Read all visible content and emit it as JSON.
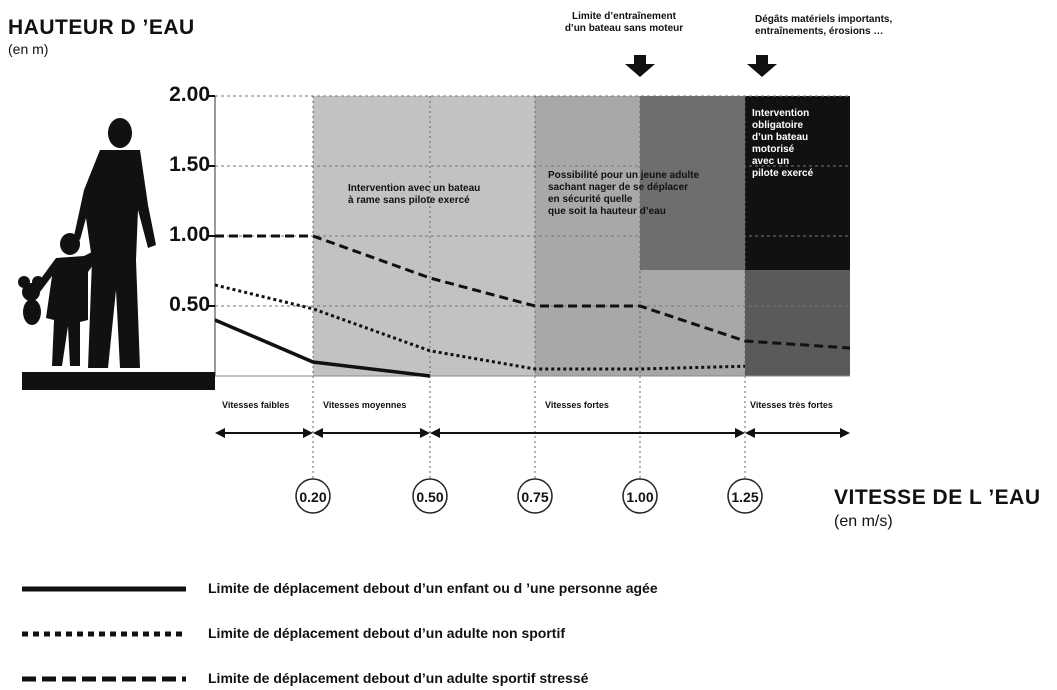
{
  "y_axis": {
    "title": "HAUTEUR D ’EAU",
    "unit": "(en m)",
    "ticks": [
      "2.00",
      "1.50",
      "1.00",
      "0.50"
    ]
  },
  "x_axis": {
    "title": "VITESSE DE L ’EAU",
    "unit": "(en m/s)",
    "ticks": [
      "0.20",
      "0.50",
      "0.75",
      "1.00",
      "1.25"
    ]
  },
  "notes": {
    "boat_limit": [
      "Limite d’entraînement",
      "d’un bateau sans moteur"
    ],
    "damage": [
      "Dégâts matériels importants,",
      "entraînements, érosions …"
    ]
  },
  "zones": {
    "rowing": [
      "Intervention avec un bateau",
      "à rame sans pilote exercé"
    ],
    "young_adult": [
      "Possibilité pour un jeune adulte",
      "sachant nager de se déplacer",
      "en sécurité quelle",
      "que soit la hauteur d’eau"
    ],
    "motor_boat": [
      "Intervention",
      "obligatoire",
      "d’un bateau",
      "motorisé",
      "avec un",
      "pilote exercé"
    ]
  },
  "speed_classes": [
    "Vitesses faibles",
    "Vitesses moyennes",
    "Vitesses fortes",
    "Vitesses très fortes"
  ],
  "legend": [
    "Limite de déplacement debout d’un enfant ou d ’une personne agée",
    "Limite de déplacement debout d’un adulte non sportif",
    "Limite de déplacement debout d’un adulte sportif stressé"
  ],
  "chart_data": {
    "type": "line",
    "xlim": [
      0,
      1.5
    ],
    "ylim": [
      0,
      2.0
    ],
    "series": [
      {
        "line_style": "solid",
        "x": [
          0.0,
          0.2,
          0.5
        ],
        "y": [
          0.4,
          0.1,
          0.0
        ]
      },
      {
        "line_style": "dotted",
        "x": [
          0.0,
          0.2,
          0.5,
          0.75,
          1.0,
          1.25
        ],
        "y": [
          0.65,
          0.48,
          0.18,
          0.05,
          0.05,
          0.07
        ]
      },
      {
        "line_style": "dashed",
        "x": [
          0.0,
          0.2,
          0.5,
          0.75,
          1.0,
          1.25,
          1.5
        ],
        "y": [
          1.0,
          1.0,
          0.7,
          0.5,
          0.5,
          0.25,
          0.2
        ]
      }
    ]
  },
  "colors": {
    "zone_light": "#c2c2c2",
    "zone_mid": "#a8a8a8",
    "zone_dark": "#6e6e6e",
    "zone_black": "#111111",
    "zone_black_lower": "#5a5a5a"
  }
}
